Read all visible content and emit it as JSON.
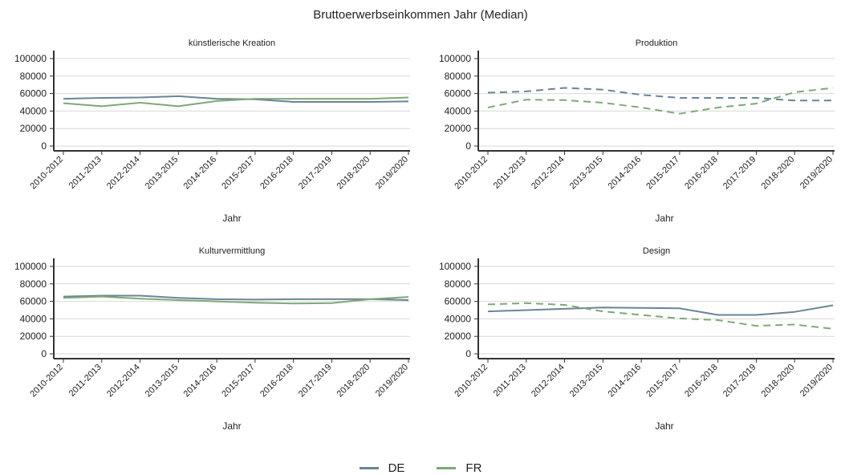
{
  "title": "Bruttoerwerbseinkommen Jahr (Median)",
  "colors": {
    "DE": "#6a8595",
    "FR": "#7fa877",
    "axis": "#333333",
    "grid": "#d9d9d9"
  },
  "legend": [
    {
      "name": "DE",
      "color": "#6a8595"
    },
    {
      "name": "FR",
      "color": "#7fa877"
    }
  ],
  "chart_data": [
    {
      "type": "line",
      "title": "künstlerische Kreation",
      "xlabel": "Jahr",
      "ylabel": "",
      "categories": [
        "2010-2012",
        "2011-2013",
        "2012-2014",
        "2013-2015",
        "2014-2016",
        "2015-2017",
        "2016-2018",
        "2017-2019",
        "2018-2020",
        "2019/2020"
      ],
      "ylim": [
        0,
        100000
      ],
      "yticks": [
        0,
        20000,
        40000,
        60000,
        80000,
        100000
      ],
      "grid": true,
      "line_style": "solid",
      "series": [
        {
          "name": "DE",
          "values": [
            54000,
            55000,
            55500,
            57000,
            54000,
            53500,
            50500,
            50500,
            50500,
            51000
          ]
        },
        {
          "name": "FR",
          "values": [
            49000,
            45500,
            49500,
            45500,
            51500,
            54000,
            54000,
            54000,
            54000,
            55500
          ]
        }
      ]
    },
    {
      "type": "line",
      "title": "Produktion",
      "xlabel": "Jahr",
      "ylabel": "",
      "categories": [
        "2010-2012",
        "2011-2013",
        "2012-2014",
        "2013-2015",
        "2014-2016",
        "2015-2017",
        "2016-2018",
        "2017-2019",
        "2018-2020",
        "2019/2020"
      ],
      "ylim": [
        0,
        100000
      ],
      "yticks": [
        0,
        20000,
        40000,
        60000,
        80000,
        100000
      ],
      "grid": true,
      "line_style": "dashed",
      "series": [
        {
          "name": "DE",
          "values": [
            61000,
            62500,
            66500,
            64500,
            58500,
            55000,
            55000,
            55000,
            52000,
            52000
          ]
        },
        {
          "name": "FR",
          "values": [
            44000,
            53000,
            52500,
            49500,
            44000,
            37000,
            44000,
            48500,
            61500,
            66500
          ]
        }
      ]
    },
    {
      "type": "line",
      "title": "Kulturvermittlung",
      "xlabel": "Jahr",
      "ylabel": "",
      "categories": [
        "2010-2012",
        "2011-2013",
        "2012-2014",
        "2013-2015",
        "2014-2016",
        "2015-2017",
        "2016-2018",
        "2017-2019",
        "2018-2020",
        "2019/2020"
      ],
      "ylim": [
        0,
        100000
      ],
      "yticks": [
        0,
        20000,
        40000,
        60000,
        80000,
        100000
      ],
      "grid": true,
      "line_style": "solid",
      "series": [
        {
          "name": "DE",
          "values": [
            65500,
            66500,
            66500,
            64000,
            62500,
            62000,
            62500,
            62500,
            62500,
            61500
          ]
        },
        {
          "name": "FR",
          "values": [
            64000,
            65500,
            63000,
            61500,
            60000,
            58500,
            57500,
            58000,
            62500,
            65000
          ]
        }
      ]
    },
    {
      "type": "line",
      "title": "Design",
      "xlabel": "Jahr",
      "ylabel": "",
      "categories": [
        "2010-2012",
        "2011-2013",
        "2012-2014",
        "2013-2015",
        "2014-2016",
        "2015-2017",
        "2016-2018",
        "2017-2019",
        "2018-2020",
        "2019/2020"
      ],
      "ylim": [
        0,
        100000
      ],
      "yticks": [
        0,
        20000,
        40000,
        60000,
        80000,
        100000
      ],
      "grid": true,
      "line_style": [
        "solid",
        "dashed"
      ],
      "series": [
        {
          "name": "DE",
          "values": [
            48500,
            50000,
            51500,
            53000,
            52500,
            52000,
            44500,
            44500,
            48000,
            55500
          ]
        },
        {
          "name": "FR",
          "values": [
            56500,
            58000,
            56000,
            48500,
            44500,
            40500,
            38500,
            32000,
            33500,
            28500
          ]
        }
      ]
    }
  ]
}
